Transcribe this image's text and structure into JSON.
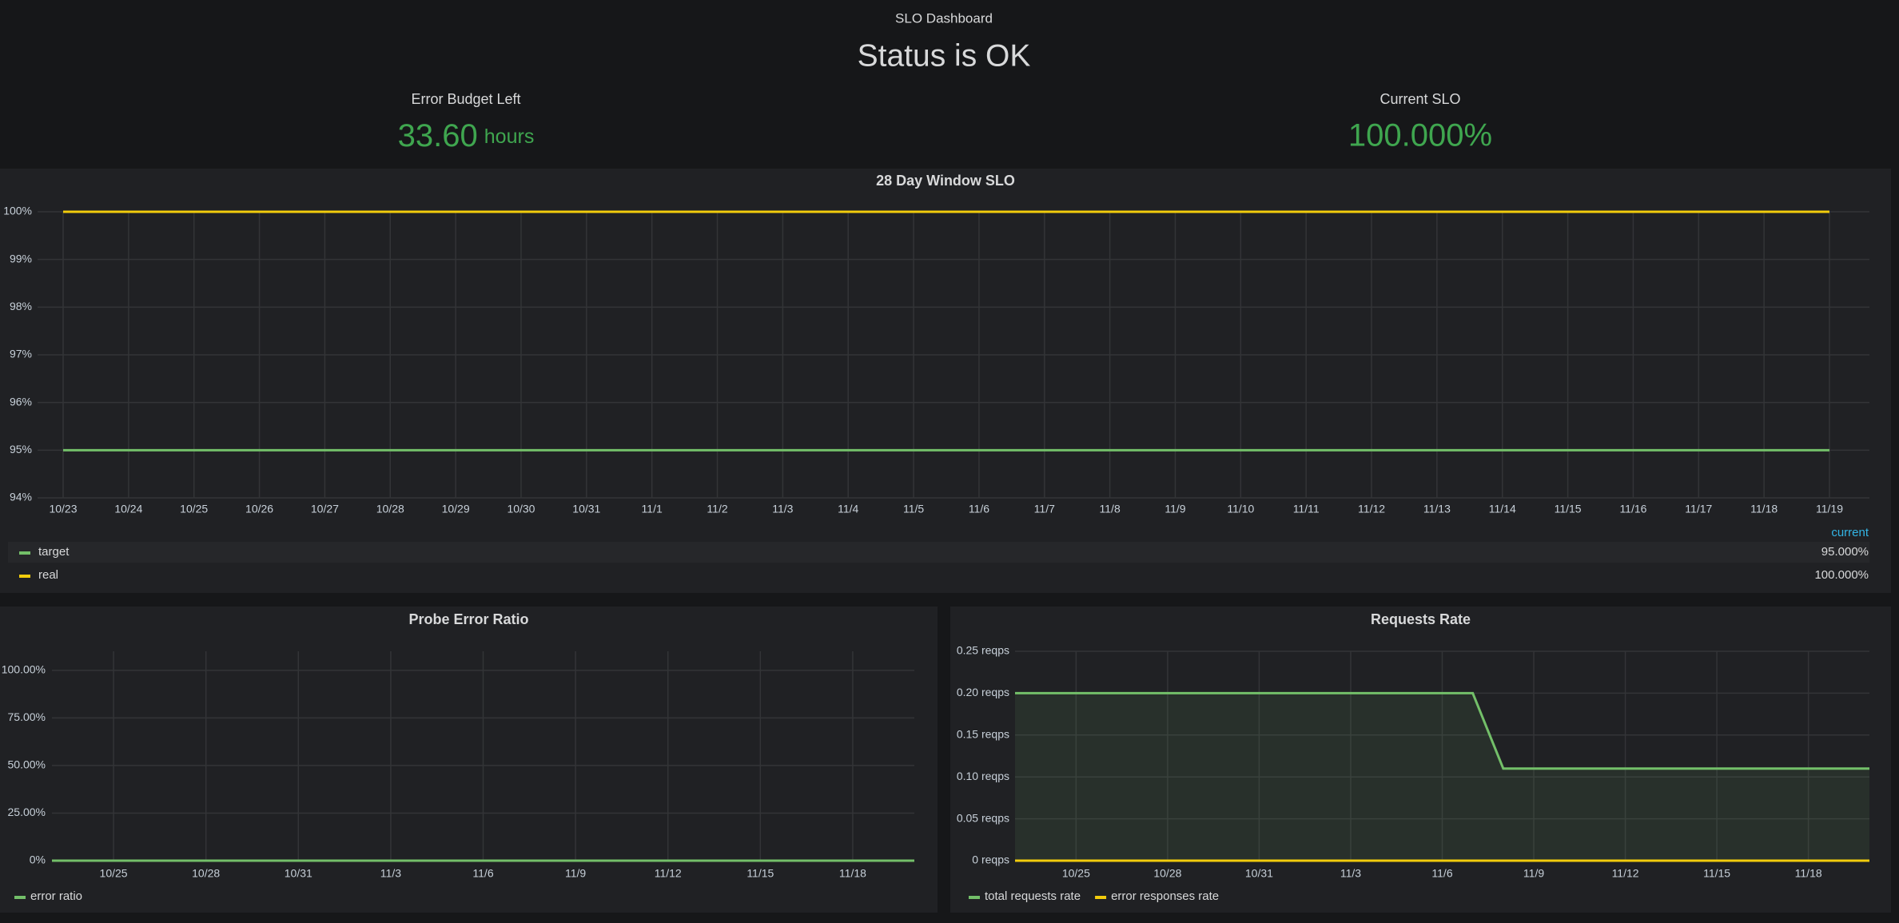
{
  "dashboard": {
    "title": "SLO Dashboard",
    "status": "Status is OK"
  },
  "stats": [
    {
      "title": "Error Budget Left",
      "value": "33.60",
      "unit": "hours"
    },
    {
      "title": "Current SLO",
      "value": "100.000%"
    }
  ],
  "chart_data": [
    {
      "type": "line",
      "title": "28 Day Window SLO",
      "categories": [
        "10/23",
        "10/24",
        "10/25",
        "10/26",
        "10/27",
        "10/28",
        "10/29",
        "10/30",
        "10/31",
        "11/1",
        "11/2",
        "11/3",
        "11/4",
        "11/5",
        "11/6",
        "11/7",
        "11/8",
        "11/9",
        "11/10",
        "11/11",
        "11/12",
        "11/13",
        "11/14",
        "11/15",
        "11/16",
        "11/17",
        "11/18",
        "11/19"
      ],
      "series": [
        {
          "name": "target",
          "color": "#73bf69",
          "current": "95.000%",
          "values": [
            95,
            95,
            95,
            95,
            95,
            95,
            95,
            95,
            95,
            95,
            95,
            95,
            95,
            95,
            95,
            95,
            95,
            95,
            95,
            95,
            95,
            95,
            95,
            95,
            95,
            95,
            95,
            95
          ]
        },
        {
          "name": "real",
          "color": "#f2cc0c",
          "current": "100.000%",
          "values": [
            100,
            100,
            100,
            100,
            100,
            100,
            100,
            100,
            100,
            100,
            100,
            100,
            100,
            100,
            100,
            100,
            100,
            100,
            100,
            100,
            100,
            100,
            100,
            100,
            100,
            100,
            100,
            100
          ]
        }
      ],
      "legend_header": "current",
      "ylim": [
        94,
        100
      ],
      "yticks": [
        {
          "value": 94,
          "label": "94%"
        },
        {
          "value": 95,
          "label": "95%"
        },
        {
          "value": 96,
          "label": "96%"
        },
        {
          "value": 97,
          "label": "97%"
        },
        {
          "value": 98,
          "label": "98%"
        },
        {
          "value": 99,
          "label": "99%"
        },
        {
          "value": 100,
          "label": "100%"
        }
      ],
      "grid": true
    },
    {
      "type": "line",
      "title": "Probe Error Ratio",
      "x": [
        "10/23",
        "11/20"
      ],
      "series": [
        {
          "name": "error ratio",
          "color": "#73bf69",
          "values": [
            0,
            0
          ]
        }
      ],
      "xlim": [
        "10/23",
        "11/20"
      ],
      "xticks": [
        "10/25",
        "10/28",
        "10/31",
        "11/3",
        "11/6",
        "11/9",
        "11/12",
        "11/15",
        "11/18"
      ],
      "ylim": [
        0,
        110
      ],
      "yticks": [
        {
          "value": 0,
          "label": "0%"
        },
        {
          "value": 25,
          "label": "25.00%"
        },
        {
          "value": 50,
          "label": "50.00%"
        },
        {
          "value": 75,
          "label": "75.00%"
        },
        {
          "value": 100,
          "label": "100.00%"
        }
      ],
      "grid": true
    },
    {
      "type": "line",
      "title": "Requests Rate",
      "x": [
        "10/23",
        "11/7",
        "11/8",
        "11/20"
      ],
      "series": [
        {
          "name": "total requests rate",
          "color": "#73bf69",
          "fill": true,
          "values": [
            0.2,
            0.2,
            0.11,
            0.11
          ]
        },
        {
          "name": "error responses rate",
          "color": "#f2cc0c",
          "values": [
            0,
            0,
            0,
            0
          ]
        }
      ],
      "xlim": [
        "10/23",
        "11/20"
      ],
      "xticks": [
        "10/25",
        "10/28",
        "10/31",
        "11/3",
        "11/6",
        "11/9",
        "11/12",
        "11/15",
        "11/18"
      ],
      "ylim": [
        0,
        0.25
      ],
      "yticks": [
        {
          "value": 0,
          "label": "0 reqps"
        },
        {
          "value": 0.05,
          "label": "0.05 reqps"
        },
        {
          "value": 0.1,
          "label": "0.10 reqps"
        },
        {
          "value": 0.15,
          "label": "0.15 reqps"
        },
        {
          "value": 0.2,
          "label": "0.20 reqps"
        },
        {
          "value": 0.25,
          "label": "0.25 reqps"
        }
      ],
      "grid": true
    }
  ]
}
